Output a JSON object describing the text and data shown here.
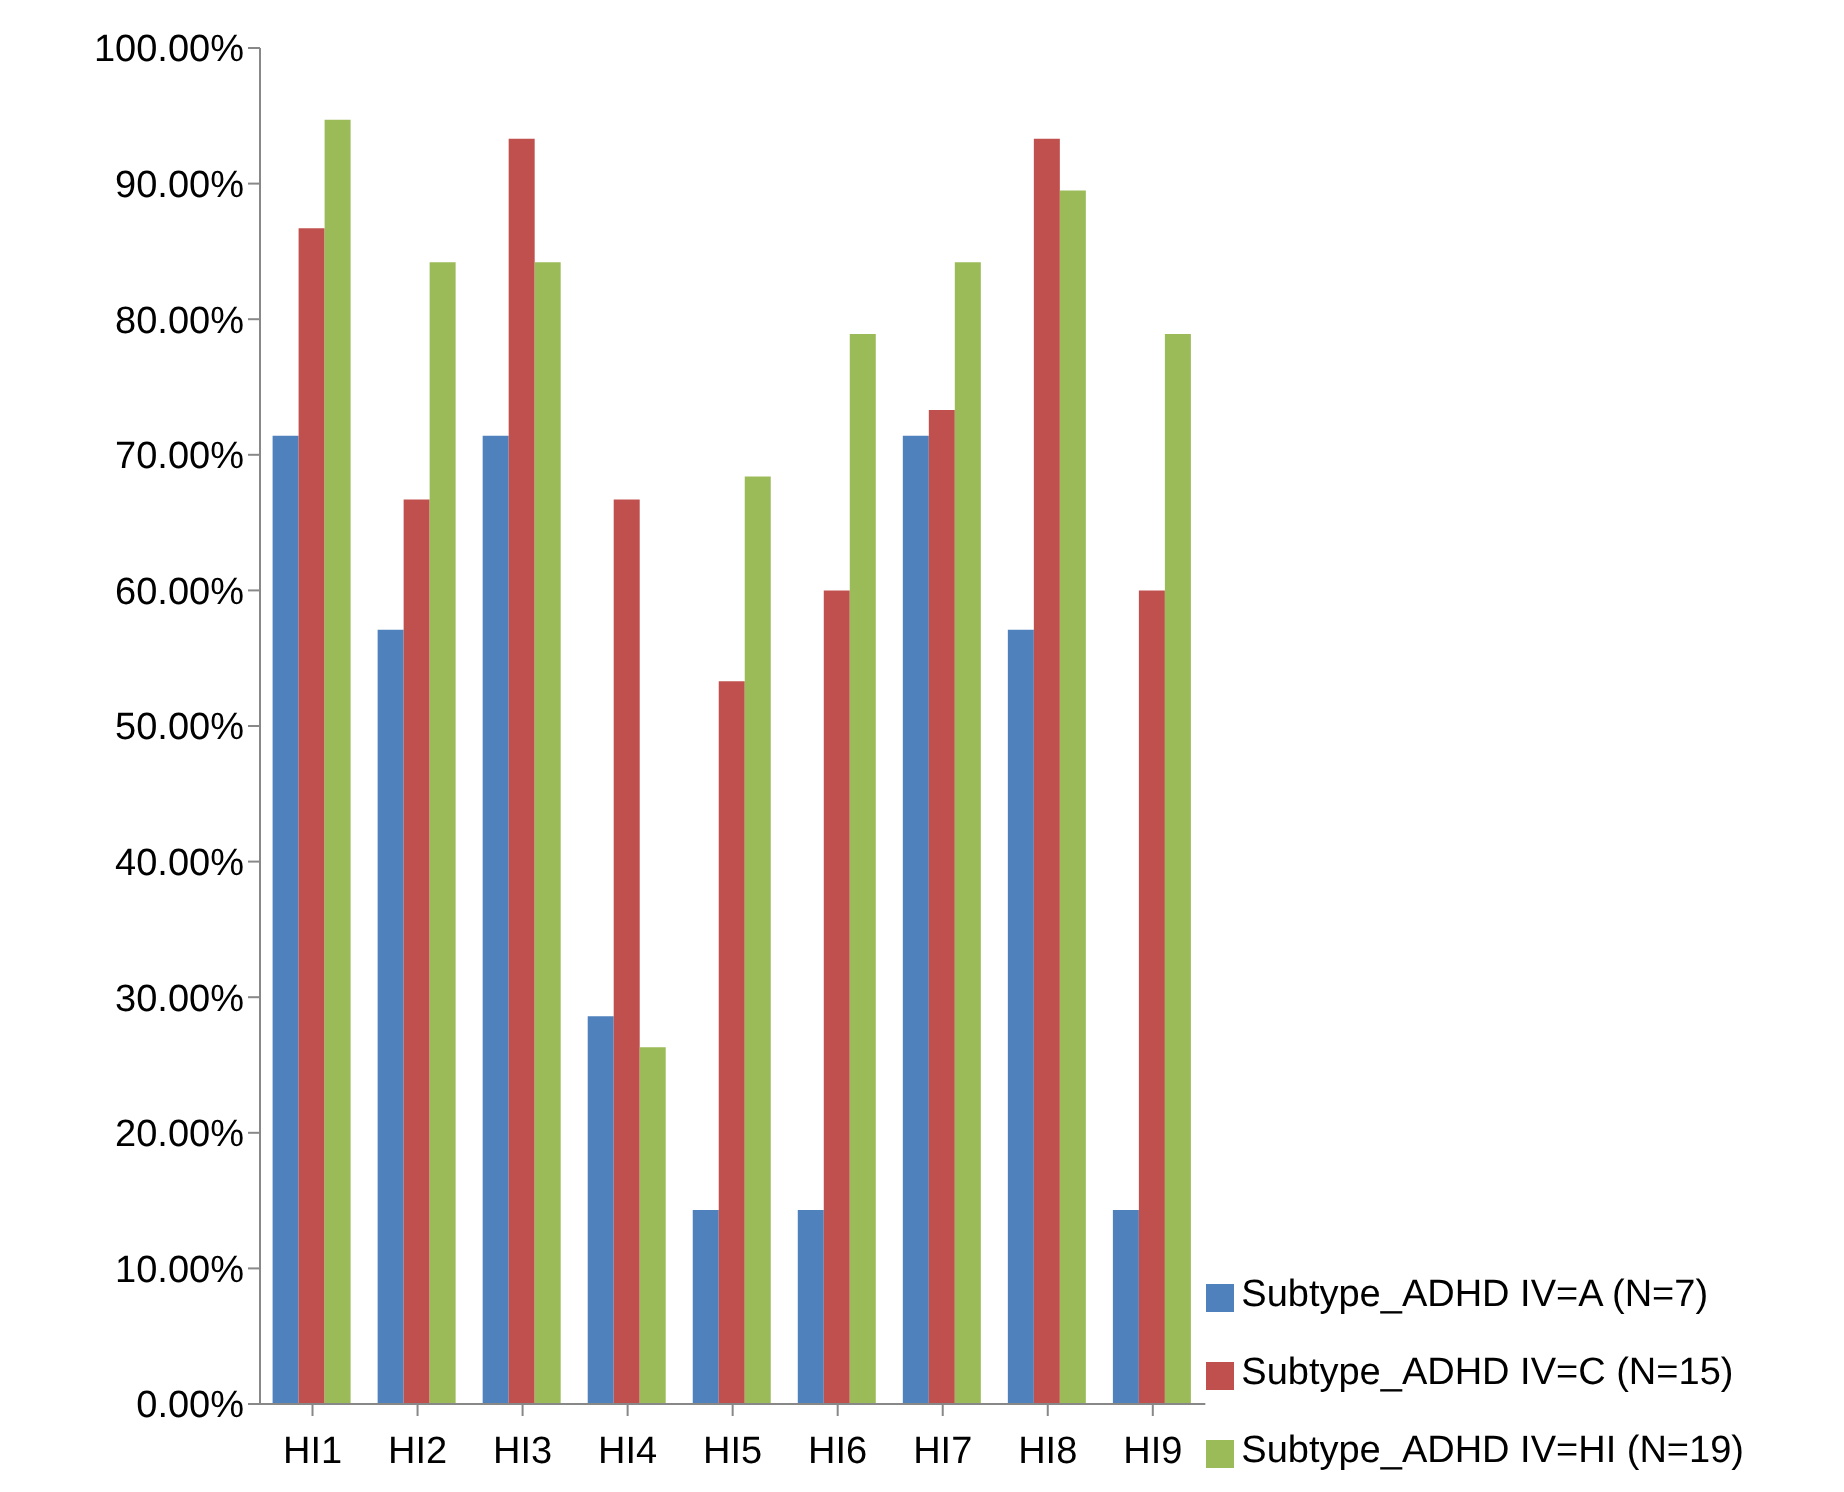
{
  "chart_data": {
    "type": "bar",
    "categories": [
      "HI1",
      "HI2",
      "HI3",
      "HI4",
      "HI5",
      "HI6",
      "HI7",
      "HI8",
      "HI9"
    ],
    "series": [
      {
        "name": "Subtype_ADHD IV=A (N=7)",
        "color": "#4f81bd",
        "values": [
          71.4,
          57.1,
          71.4,
          28.6,
          14.3,
          14.3,
          71.4,
          57.1,
          14.3
        ]
      },
      {
        "name": "Subtype_ADHD IV=C (N=15)",
        "color": "#c0504d",
        "values": [
          86.7,
          66.7,
          93.3,
          66.7,
          53.3,
          60.0,
          73.3,
          93.3,
          60.0
        ]
      },
      {
        "name": "Subtype_ADHD IV=HI (N=19)",
        "color": "#9bbb59",
        "values": [
          94.7,
          84.2,
          84.2,
          26.3,
          68.4,
          78.9,
          84.2,
          89.5,
          78.9
        ]
      }
    ],
    "ylim": [
      0,
      100
    ],
    "yticks": [
      {
        "value": 0,
        "label": "0.00%"
      },
      {
        "value": 10,
        "label": "10.00%"
      },
      {
        "value": 20,
        "label": "20.00%"
      },
      {
        "value": 30,
        "label": "30.00%"
      },
      {
        "value": 40,
        "label": "40.00%"
      },
      {
        "value": 50,
        "label": "50.00%"
      },
      {
        "value": 60,
        "label": "60.00%"
      },
      {
        "value": 70,
        "label": "70.00%"
      },
      {
        "value": 80,
        "label": "80.00%"
      },
      {
        "value": 90,
        "label": "90.00%"
      },
      {
        "value": 100,
        "label": "100.00%"
      }
    ],
    "grid": false,
    "legend": "bottom right"
  }
}
